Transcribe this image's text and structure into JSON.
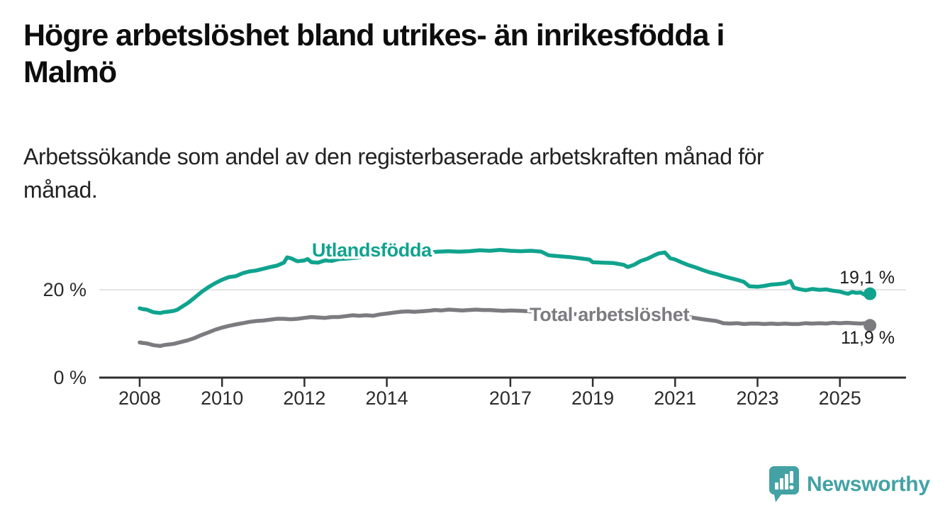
{
  "header": {
    "title_lines": [
      "Högre arbetslöshet bland utrikes- än inrikesfödda i",
      "Malmö"
    ],
    "subtitle_lines": [
      "Arbetssökande som andel av den registerbaserade arbetskraften månad för",
      "månad."
    ]
  },
  "chart_data": {
    "type": "line",
    "title": "Högre arbetslöshet bland utrikes- än inrikesfödda i Malmö",
    "subtitle": "Arbetssökande som andel av den registerbaserade arbetskraften månad för månad.",
    "unit": "%",
    "x_axis": {
      "range": [
        2007.95,
        2025.95
      ],
      "ticks": [
        {
          "value": 2008,
          "label": "2008"
        },
        {
          "value": 2010,
          "label": "2010"
        },
        {
          "value": 2012,
          "label": "2012"
        },
        {
          "value": 2014,
          "label": "2014"
        },
        {
          "value": 2017,
          "label": "2017"
        },
        {
          "value": 2019,
          "label": "2019"
        },
        {
          "value": 2021,
          "label": "2021"
        },
        {
          "value": 2023,
          "label": "2023"
        },
        {
          "value": 2025,
          "label": "2025"
        }
      ]
    },
    "y_axis": {
      "range": [
        0,
        36
      ],
      "ticks": [
        {
          "value": 0,
          "label": "0 %"
        },
        {
          "value": 20,
          "label": "20 %"
        }
      ],
      "gridline_at": 20
    },
    "colors": {
      "utlandsfodda": "#10a38e",
      "total": "#7b7b80",
      "axis": "#2f2f2f",
      "grid": "#dedede",
      "value_label": "#1a1a1a"
    },
    "series": [
      {
        "name": "Utlandsfödda",
        "color": "#10a38e",
        "end_value": 19.1,
        "end_label": "19,1 %",
        "points": [
          [
            2008.0,
            15.8
          ],
          [
            2008.08,
            15.6
          ],
          [
            2008.17,
            15.5
          ],
          [
            2008.25,
            15.2
          ],
          [
            2008.33,
            14.9
          ],
          [
            2008.42,
            14.8
          ],
          [
            2008.5,
            14.7
          ],
          [
            2008.58,
            14.9
          ],
          [
            2008.67,
            15.0
          ],
          [
            2008.75,
            15.1
          ],
          [
            2008.83,
            15.2
          ],
          [
            2008.92,
            15.5
          ],
          [
            2009.0,
            16.0
          ],
          [
            2009.17,
            17.0
          ],
          [
            2009.33,
            18.2
          ],
          [
            2009.5,
            19.5
          ],
          [
            2009.67,
            20.6
          ],
          [
            2009.83,
            21.5
          ],
          [
            2010.0,
            22.3
          ],
          [
            2010.17,
            22.9
          ],
          [
            2010.33,
            23.1
          ],
          [
            2010.5,
            23.8
          ],
          [
            2010.67,
            24.2
          ],
          [
            2010.83,
            24.4
          ],
          [
            2011.0,
            24.8
          ],
          [
            2011.17,
            25.2
          ],
          [
            2011.33,
            25.5
          ],
          [
            2011.5,
            26.2
          ],
          [
            2011.58,
            27.4
          ],
          [
            2011.67,
            27.2
          ],
          [
            2011.83,
            26.5
          ],
          [
            2012.0,
            26.7
          ],
          [
            2012.08,
            27.0
          ],
          [
            2012.17,
            26.3
          ],
          [
            2012.33,
            26.2
          ],
          [
            2012.5,
            26.7
          ],
          [
            2012.67,
            26.6
          ],
          [
            2012.83,
            27.0
          ],
          [
            2013.0,
            27.1
          ],
          [
            2013.25,
            27.3
          ],
          [
            2013.5,
            27.6
          ],
          [
            2013.75,
            27.7
          ],
          [
            2014.0,
            28.0
          ],
          [
            2014.25,
            28.1
          ],
          [
            2014.5,
            28.3
          ],
          [
            2014.75,
            28.2
          ],
          [
            2015.0,
            28.5
          ],
          [
            2015.25,
            28.7
          ],
          [
            2015.5,
            28.8
          ],
          [
            2015.75,
            28.7
          ],
          [
            2016.0,
            28.8
          ],
          [
            2016.25,
            29.0
          ],
          [
            2016.5,
            28.9
          ],
          [
            2016.75,
            29.1
          ],
          [
            2017.0,
            28.9
          ],
          [
            2017.25,
            28.8
          ],
          [
            2017.5,
            28.9
          ],
          [
            2017.75,
            28.7
          ],
          [
            2017.92,
            27.9
          ],
          [
            2018.0,
            27.8
          ],
          [
            2018.25,
            27.6
          ],
          [
            2018.5,
            27.4
          ],
          [
            2018.75,
            27.1
          ],
          [
            2018.92,
            26.9
          ],
          [
            2019.0,
            26.3
          ],
          [
            2019.25,
            26.2
          ],
          [
            2019.5,
            26.1
          ],
          [
            2019.75,
            25.7
          ],
          [
            2019.85,
            25.2
          ],
          [
            2020.0,
            25.7
          ],
          [
            2020.17,
            26.6
          ],
          [
            2020.33,
            27.1
          ],
          [
            2020.5,
            27.9
          ],
          [
            2020.6,
            28.3
          ],
          [
            2020.75,
            28.5
          ],
          [
            2020.88,
            27.2
          ],
          [
            2021.0,
            26.9
          ],
          [
            2021.17,
            26.2
          ],
          [
            2021.33,
            25.6
          ],
          [
            2021.5,
            25.1
          ],
          [
            2021.67,
            24.5
          ],
          [
            2021.83,
            24.0
          ],
          [
            2022.0,
            23.6
          ],
          [
            2022.17,
            23.1
          ],
          [
            2022.33,
            22.7
          ],
          [
            2022.5,
            22.3
          ],
          [
            2022.67,
            21.8
          ],
          [
            2022.8,
            20.8
          ],
          [
            2023.0,
            20.7
          ],
          [
            2023.17,
            20.9
          ],
          [
            2023.33,
            21.2
          ],
          [
            2023.5,
            21.3
          ],
          [
            2023.67,
            21.5
          ],
          [
            2023.8,
            22.0
          ],
          [
            2023.88,
            20.5
          ],
          [
            2024.0,
            20.2
          ],
          [
            2024.17,
            19.9
          ],
          [
            2024.33,
            20.2
          ],
          [
            2024.5,
            20.0
          ],
          [
            2024.67,
            20.1
          ],
          [
            2024.83,
            19.8
          ],
          [
            2025.0,
            19.6
          ],
          [
            2025.1,
            19.3
          ],
          [
            2025.2,
            19.1
          ],
          [
            2025.3,
            19.5
          ],
          [
            2025.4,
            19.3
          ],
          [
            2025.5,
            19.4
          ],
          [
            2025.6,
            18.9
          ],
          [
            2025.73,
            19.1
          ]
        ]
      },
      {
        "name": "Total arbetslöshet",
        "color": "#7b7b80",
        "end_value": 11.9,
        "end_label": "11,9 %",
        "points": [
          [
            2008.0,
            8.0
          ],
          [
            2008.08,
            7.9
          ],
          [
            2008.17,
            7.8
          ],
          [
            2008.25,
            7.6
          ],
          [
            2008.33,
            7.4
          ],
          [
            2008.42,
            7.3
          ],
          [
            2008.5,
            7.2
          ],
          [
            2008.58,
            7.4
          ],
          [
            2008.67,
            7.5
          ],
          [
            2008.83,
            7.7
          ],
          [
            2009.0,
            8.1
          ],
          [
            2009.17,
            8.5
          ],
          [
            2009.33,
            9.0
          ],
          [
            2009.5,
            9.7
          ],
          [
            2009.67,
            10.3
          ],
          [
            2009.83,
            10.9
          ],
          [
            2010.0,
            11.4
          ],
          [
            2010.17,
            11.8
          ],
          [
            2010.33,
            12.1
          ],
          [
            2010.5,
            12.4
          ],
          [
            2010.67,
            12.7
          ],
          [
            2010.83,
            12.9
          ],
          [
            2011.0,
            13.0
          ],
          [
            2011.17,
            13.2
          ],
          [
            2011.33,
            13.4
          ],
          [
            2011.5,
            13.4
          ],
          [
            2011.67,
            13.3
          ],
          [
            2011.83,
            13.4
          ],
          [
            2012.0,
            13.6
          ],
          [
            2012.17,
            13.8
          ],
          [
            2012.33,
            13.7
          ],
          [
            2012.5,
            13.6
          ],
          [
            2012.67,
            13.8
          ],
          [
            2012.83,
            13.8
          ],
          [
            2013.0,
            14.0
          ],
          [
            2013.17,
            14.2
          ],
          [
            2013.33,
            14.1
          ],
          [
            2013.5,
            14.2
          ],
          [
            2013.67,
            14.1
          ],
          [
            2013.83,
            14.4
          ],
          [
            2014.0,
            14.6
          ],
          [
            2014.17,
            14.8
          ],
          [
            2014.33,
            15.0
          ],
          [
            2014.5,
            15.1
          ],
          [
            2014.67,
            15.0
          ],
          [
            2014.83,
            15.1
          ],
          [
            2015.0,
            15.2
          ],
          [
            2015.17,
            15.4
          ],
          [
            2015.33,
            15.3
          ],
          [
            2015.5,
            15.5
          ],
          [
            2015.67,
            15.4
          ],
          [
            2015.83,
            15.3
          ],
          [
            2016.0,
            15.4
          ],
          [
            2016.17,
            15.5
          ],
          [
            2016.33,
            15.4
          ],
          [
            2016.5,
            15.4
          ],
          [
            2016.67,
            15.3
          ],
          [
            2016.83,
            15.2
          ],
          [
            2017.0,
            15.3
          ],
          [
            2017.25,
            15.2
          ],
          [
            2017.5,
            15.1
          ],
          [
            2017.75,
            14.9
          ],
          [
            2018.0,
            14.8
          ],
          [
            2018.33,
            14.6
          ],
          [
            2018.67,
            14.4
          ],
          [
            2019.0,
            14.2
          ],
          [
            2019.33,
            14.0
          ],
          [
            2019.67,
            13.9
          ],
          [
            2020.0,
            14.1
          ],
          [
            2020.33,
            14.6
          ],
          [
            2020.6,
            14.9
          ],
          [
            2020.83,
            14.6
          ],
          [
            2021.0,
            14.3
          ],
          [
            2021.33,
            13.8
          ],
          [
            2021.67,
            13.3
          ],
          [
            2022.0,
            12.9
          ],
          [
            2022.17,
            12.4
          ],
          [
            2022.33,
            12.3
          ],
          [
            2022.5,
            12.4
          ],
          [
            2022.67,
            12.2
          ],
          [
            2022.83,
            12.3
          ],
          [
            2023.0,
            12.3
          ],
          [
            2023.17,
            12.2
          ],
          [
            2023.33,
            12.3
          ],
          [
            2023.5,
            12.2
          ],
          [
            2023.67,
            12.3
          ],
          [
            2023.83,
            12.2
          ],
          [
            2024.0,
            12.2
          ],
          [
            2024.17,
            12.4
          ],
          [
            2024.33,
            12.3
          ],
          [
            2024.5,
            12.4
          ],
          [
            2024.67,
            12.3
          ],
          [
            2024.83,
            12.5
          ],
          [
            2025.0,
            12.4
          ],
          [
            2025.17,
            12.5
          ],
          [
            2025.33,
            12.4
          ],
          [
            2025.5,
            12.3
          ],
          [
            2025.6,
            12.4
          ],
          [
            2025.73,
            11.9
          ]
        ]
      }
    ],
    "legend_position": "inline-labels"
  },
  "branding": {
    "name": "Newsworthy",
    "icon": "speech-bubble-bar-chart-icon",
    "color": "#44a2a4"
  }
}
